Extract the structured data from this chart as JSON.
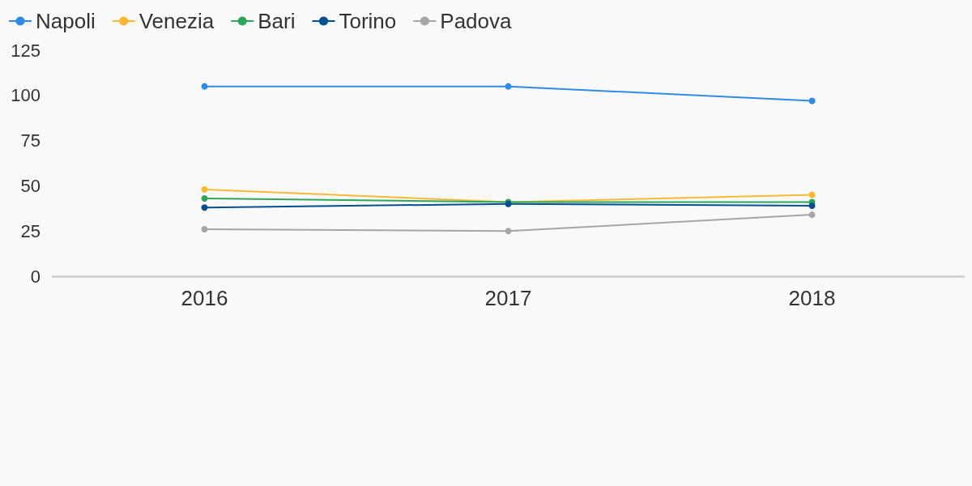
{
  "chart_data": {
    "type": "line",
    "categories": [
      "2016",
      "2017",
      "2018"
    ],
    "series": [
      {
        "name": "Napoli",
        "color": "#2e8ae6",
        "values": [
          105,
          105,
          97
        ]
      },
      {
        "name": "Venezia",
        "color": "#fbb836",
        "values": [
          48,
          41,
          45
        ]
      },
      {
        "name": "Bari",
        "color": "#2da55a",
        "values": [
          43,
          41,
          41
        ]
      },
      {
        "name": "Torino",
        "color": "#02508f",
        "values": [
          38,
          40,
          39
        ]
      },
      {
        "name": "Padova",
        "color": "#a6a6a6",
        "values": [
          26,
          25,
          34
        ]
      }
    ],
    "ylim": [
      0,
      125
    ],
    "yticks": [
      0,
      25,
      50,
      75,
      100,
      125
    ],
    "grid": false,
    "legend": "top left",
    "marker": "circle",
    "line_style": "solid"
  }
}
